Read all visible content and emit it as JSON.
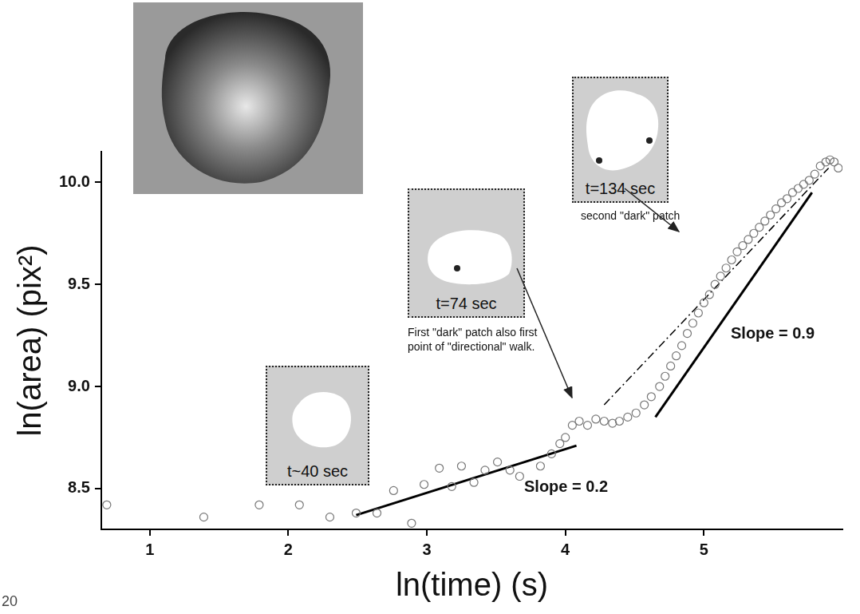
{
  "chart_data": {
    "type": "scatter",
    "x_label": "ln(time) (s)",
    "y_label": "ln(area) (pix²)",
    "xlim": [
      0.65,
      6.0
    ],
    "ylim": [
      8.3,
      10.15
    ],
    "xticks": [
      1,
      2,
      3,
      4,
      5
    ],
    "yticks": [
      8.5,
      {
        "value": 9,
        "label": "9.0"
      },
      9.5,
      {
        "value": 10,
        "label": "10.0"
      }
    ],
    "grid": false,
    "series": [
      {
        "type": "scatter",
        "marker": "circle_open",
        "color": "#777777",
        "x": [
          0.69,
          1.39,
          1.79,
          2.08,
          2.3,
          2.49,
          2.64,
          2.76,
          2.89,
          2.98,
          3.09,
          3.18,
          3.25,
          3.34,
          3.42,
          3.51,
          3.6,
          3.67,
          3.82,
          3.9,
          3.96,
          4.0,
          4.05,
          4.1,
          4.16,
          4.22,
          4.28,
          4.34,
          4.39,
          4.45,
          4.51,
          4.57,
          4.62,
          4.68,
          4.72,
          4.76,
          4.8,
          4.84,
          4.88,
          4.92,
          4.96,
          5.0,
          5.04,
          5.08,
          5.12,
          5.16,
          5.2,
          5.24,
          5.28,
          5.32,
          5.36,
          5.4,
          5.44,
          5.48,
          5.52,
          5.56,
          5.6,
          5.64,
          5.68,
          5.72,
          5.76,
          5.8,
          5.84,
          5.88,
          5.91,
          5.94,
          5.97
        ],
        "values": [
          8.42,
          8.36,
          8.42,
          8.42,
          8.36,
          8.38,
          8.38,
          8.49,
          8.33,
          8.52,
          8.6,
          8.51,
          8.61,
          8.53,
          8.59,
          8.63,
          8.59,
          8.56,
          8.61,
          8.67,
          8.72,
          8.75,
          8.81,
          8.83,
          8.81,
          8.84,
          8.83,
          8.82,
          8.83,
          8.85,
          8.87,
          8.91,
          8.95,
          9.0,
          9.05,
          9.1,
          9.15,
          9.2,
          9.26,
          9.31,
          9.36,
          9.41,
          9.45,
          9.5,
          9.54,
          9.58,
          9.62,
          9.66,
          9.69,
          9.72,
          9.75,
          9.78,
          9.81,
          9.84,
          9.87,
          9.9,
          9.92,
          9.95,
          9.97,
          9.99,
          10.01,
          10.04,
          10.08,
          10.1,
          10.11,
          10.1,
          10.07
        ]
      },
      {
        "type": "line",
        "line_style": "solid",
        "color": "#000000",
        "x": [
          2.49,
          4.08
        ],
        "values": [
          8.37,
          8.71
        ]
      },
      {
        "type": "line",
        "line_style": "solid",
        "color": "#000000",
        "x": [
          4.65,
          5.78
        ],
        "values": [
          8.85,
          9.95
        ]
      },
      {
        "type": "line",
        "line_style": "dashdot",
        "color": "#000000",
        "x": [
          4.28,
          5.9
        ],
        "values": [
          8.91,
          10.07
        ]
      }
    ],
    "insets": [
      "t~40 sec",
      "t=74 sec",
      "t=134 sec"
    ],
    "annotations": [
      "First \"dark\" patch also first point of \"directional\" walk.",
      "second \"dark\" patch",
      "Slope = 0.2",
      "Slope = 0.9",
      "20"
    ]
  }
}
